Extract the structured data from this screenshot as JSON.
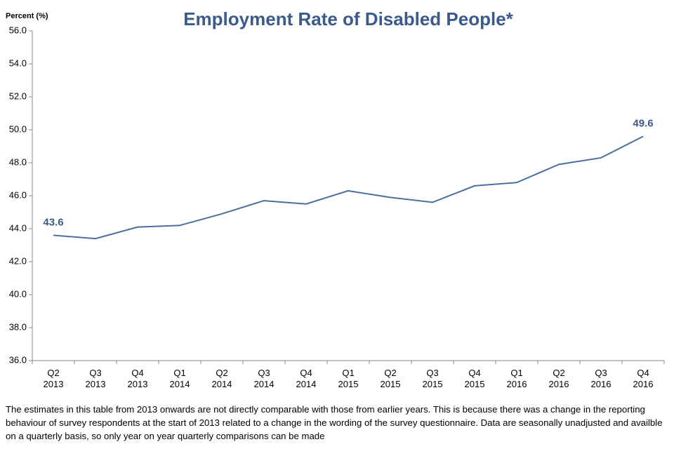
{
  "chart_data": {
    "type": "line",
    "title": "Employment Rate of Disabled People*",
    "y_label": "Percent (%)",
    "categories": [
      "Q2\n2013",
      "Q3\n2013",
      "Q4\n2013",
      "Q1\n2014",
      "Q2\n2014",
      "Q3\n2014",
      "Q4\n2014",
      "Q1\n2015",
      "Q2\n2015",
      "Q3\n2015",
      "Q4\n2015",
      "Q1\n2016",
      "Q2\n2016",
      "Q3\n2016",
      "Q4\n2016"
    ],
    "values": [
      43.6,
      43.4,
      44.1,
      44.2,
      44.9,
      45.7,
      45.5,
      46.3,
      45.9,
      45.6,
      46.6,
      46.8,
      47.9,
      48.3,
      49.6
    ],
    "value_labels": [
      "43.6",
      null,
      null,
      null,
      null,
      null,
      null,
      null,
      null,
      null,
      null,
      null,
      null,
      null,
      "49.6"
    ],
    "color": "#4a6e9e",
    "ylim": [
      36,
      56
    ],
    "yticks": [
      {
        "value": 36,
        "label": "36.0"
      },
      {
        "value": 38,
        "label": "38.0"
      },
      {
        "value": 40,
        "label": "40.0"
      },
      {
        "value": 42,
        "label": "42.0"
      },
      {
        "value": 44,
        "label": "44.0"
      },
      {
        "value": 46,
        "label": "46.0"
      },
      {
        "value": 48,
        "label": "48.0"
      },
      {
        "value": 50,
        "label": "50.0"
      },
      {
        "value": 52,
        "label": "52.0"
      },
      {
        "value": 54,
        "label": "54.0"
      },
      {
        "value": 56,
        "label": "56.0"
      }
    ],
    "grid": false,
    "footnote": "The estimates in this table from 2013 onwards are not directly comparable with those from earlier years. This is because there was a change in the reporting behaviour of survey respondents at the start of 2013 related to a change in the wording of the survey questionnaire. Data are seasonally unadjusted and availble on a quarterly basis, so only year on year quarterly comparisons can be made"
  }
}
